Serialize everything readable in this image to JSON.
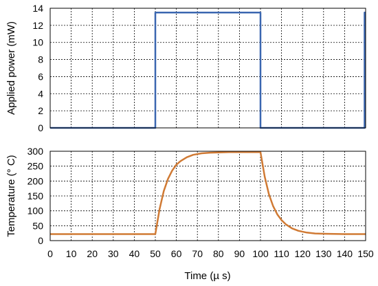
{
  "chart_data": [
    {
      "type": "line",
      "xlabel": "",
      "ylabel": "Applied power (mW)",
      "xlim": [
        0,
        150
      ],
      "ylim": [
        0,
        14
      ],
      "xticks": [
        0,
        10,
        20,
        30,
        40,
        50,
        60,
        70,
        80,
        90,
        100,
        110,
        120,
        130,
        140,
        150
      ],
      "yticks": [
        "0",
        "2",
        "4",
        "6",
        "8",
        "10",
        "12",
        "14"
      ],
      "grid": true,
      "series": [
        {
          "color": "#3a66b0",
          "x": [
            0,
            50,
            50,
            100,
            100,
            149.5,
            149.5,
            150
          ],
          "y": [
            0,
            0,
            13.5,
            13.5,
            0,
            0,
            13.5,
            13.5
          ]
        }
      ]
    },
    {
      "type": "line",
      "xlabel": "Time (µ s)",
      "ylabel": "Temperature (° C)",
      "xlim": [
        0,
        150
      ],
      "ylim": [
        0,
        300
      ],
      "xticks": [
        "0",
        "10",
        "20",
        "30",
        "40",
        "50",
        "60",
        "70",
        "80",
        "90",
        "100",
        "110",
        "120",
        "130",
        "140",
        "150"
      ],
      "yticks": [
        "0",
        "50",
        "100",
        "150",
        "200",
        "250",
        "300"
      ],
      "grid": true,
      "series": [
        {
          "color": "#d07a34",
          "x": [
            0,
            10,
            20,
            30,
            40,
            50,
            52,
            54,
            56,
            58,
            60,
            62,
            65,
            68,
            72,
            76,
            80,
            85,
            90,
            95,
            100,
            102,
            104,
            106,
            108,
            110,
            112,
            115,
            118,
            122,
            126,
            130,
            140,
            150
          ],
          "y": [
            22,
            22,
            22,
            22,
            22,
            22,
            105,
            166,
            207,
            235,
            255,
            267,
            280,
            288,
            293,
            295,
            296,
            297,
            297,
            297,
            297,
            215,
            156,
            116,
            88,
            69,
            55,
            41,
            33,
            27,
            24,
            23,
            22,
            22
          ]
        }
      ]
    }
  ]
}
